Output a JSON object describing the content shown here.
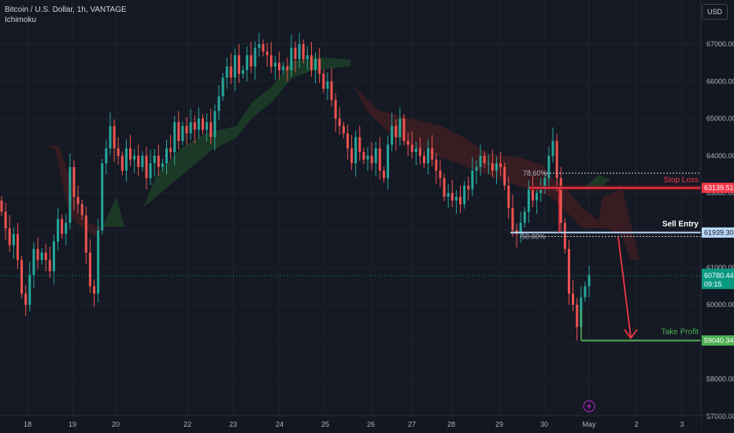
{
  "header": {
    "symbol_line": "Bitcoin / U.S. Dollar, 1h, VANTAGE",
    "indicator": "Ichimoku"
  },
  "currency_button": "USD",
  "chart_data": {
    "type": "candlestick",
    "symbol": "Bitcoin / U.S. Dollar",
    "interval": "1h",
    "exchange": "VANTAGE",
    "indicator": "Ichimoku",
    "ylim": [
      57000,
      67500
    ],
    "y_ticks": [
      "67000.00",
      "66000.00",
      "65000.00",
      "64000.00",
      "63000.00",
      "62000.00",
      "61000.00",
      "60000.00",
      "59000.00",
      "58000.00",
      "57000.00"
    ],
    "x_ticks": [
      "18",
      "19",
      "20",
      "22",
      "23",
      "24",
      "25",
      "26",
      "27",
      "28",
      "29",
      "30",
      "May",
      "2",
      "3"
    ],
    "grid": true,
    "candles_approx_close": [
      62500,
      62050,
      61600,
      61900,
      61200,
      60300,
      60000,
      60800,
      61500,
      61200,
      61400,
      61200,
      60900,
      61700,
      62300,
      61900,
      62200,
      63700,
      62900,
      62700,
      62400,
      61400,
      60500,
      60300,
      62000,
      63800,
      64200,
      64800,
      64200,
      64000,
      63600,
      64200,
      63900,
      64000,
      63700,
      64000,
      63400,
      63800,
      64000,
      63700,
      63800,
      64200,
      64100,
      64900,
      64400,
      64800,
      64600,
      64900,
      64700,
      65000,
      64700,
      64900,
      64500,
      65200,
      65600,
      66100,
      66400,
      66100,
      66700,
      66200,
      66300,
      66700,
      66400,
      66900,
      67000,
      66800,
      66700,
      66400,
      66500,
      66300,
      66400,
      66300,
      66900,
      66600,
      67000,
      66600,
      66700,
      66300,
      66600,
      66200,
      65800,
      66000,
      65500,
      65000,
      64800,
      64600,
      64200,
      63800,
      64500,
      64100,
      63900,
      64000,
      63800,
      64200,
      63600,
      63400,
      64300,
      64800,
      64500,
      65000,
      64400,
      64300,
      64100,
      64200,
      64000,
      63800,
      64200,
      63900,
      63600,
      63400,
      62900,
      63000,
      62800,
      62900,
      62700,
      63200,
      63100,
      63600,
      63700,
      64000,
      63800,
      63800,
      63600,
      63800,
      63700,
      63200,
      62600,
      62000,
      61900,
      62200,
      62500,
      63100,
      62800,
      63000,
      63100,
      63400,
      64000,
      64400,
      63400,
      62200,
      61500,
      60300,
      60000,
      59400,
      60200,
      60500,
      60800
    ]
  },
  "price_lines": {
    "stop_loss": {
      "label": "Stop Loss",
      "value": "63139.51",
      "color": "#f23645"
    },
    "sell_entry": {
      "label": "Sell Entry",
      "value": "61939.30",
      "color": "#bbd9fb"
    },
    "take_profit": {
      "label": "Take Profit",
      "value": "59040.34",
      "color": "#4caf50"
    }
  },
  "fib_levels": {
    "upper": "78.60%",
    "lower": "50.00%"
  },
  "current_price": {
    "value": "60780.44",
    "countdown": "09:15",
    "color": "#089981"
  },
  "colors": {
    "up": "#26a69a",
    "down": "#ef5350",
    "cloud_bull": "#1b3b27",
    "cloud_bear": "#3d1d22",
    "arrow": "#f23645"
  }
}
